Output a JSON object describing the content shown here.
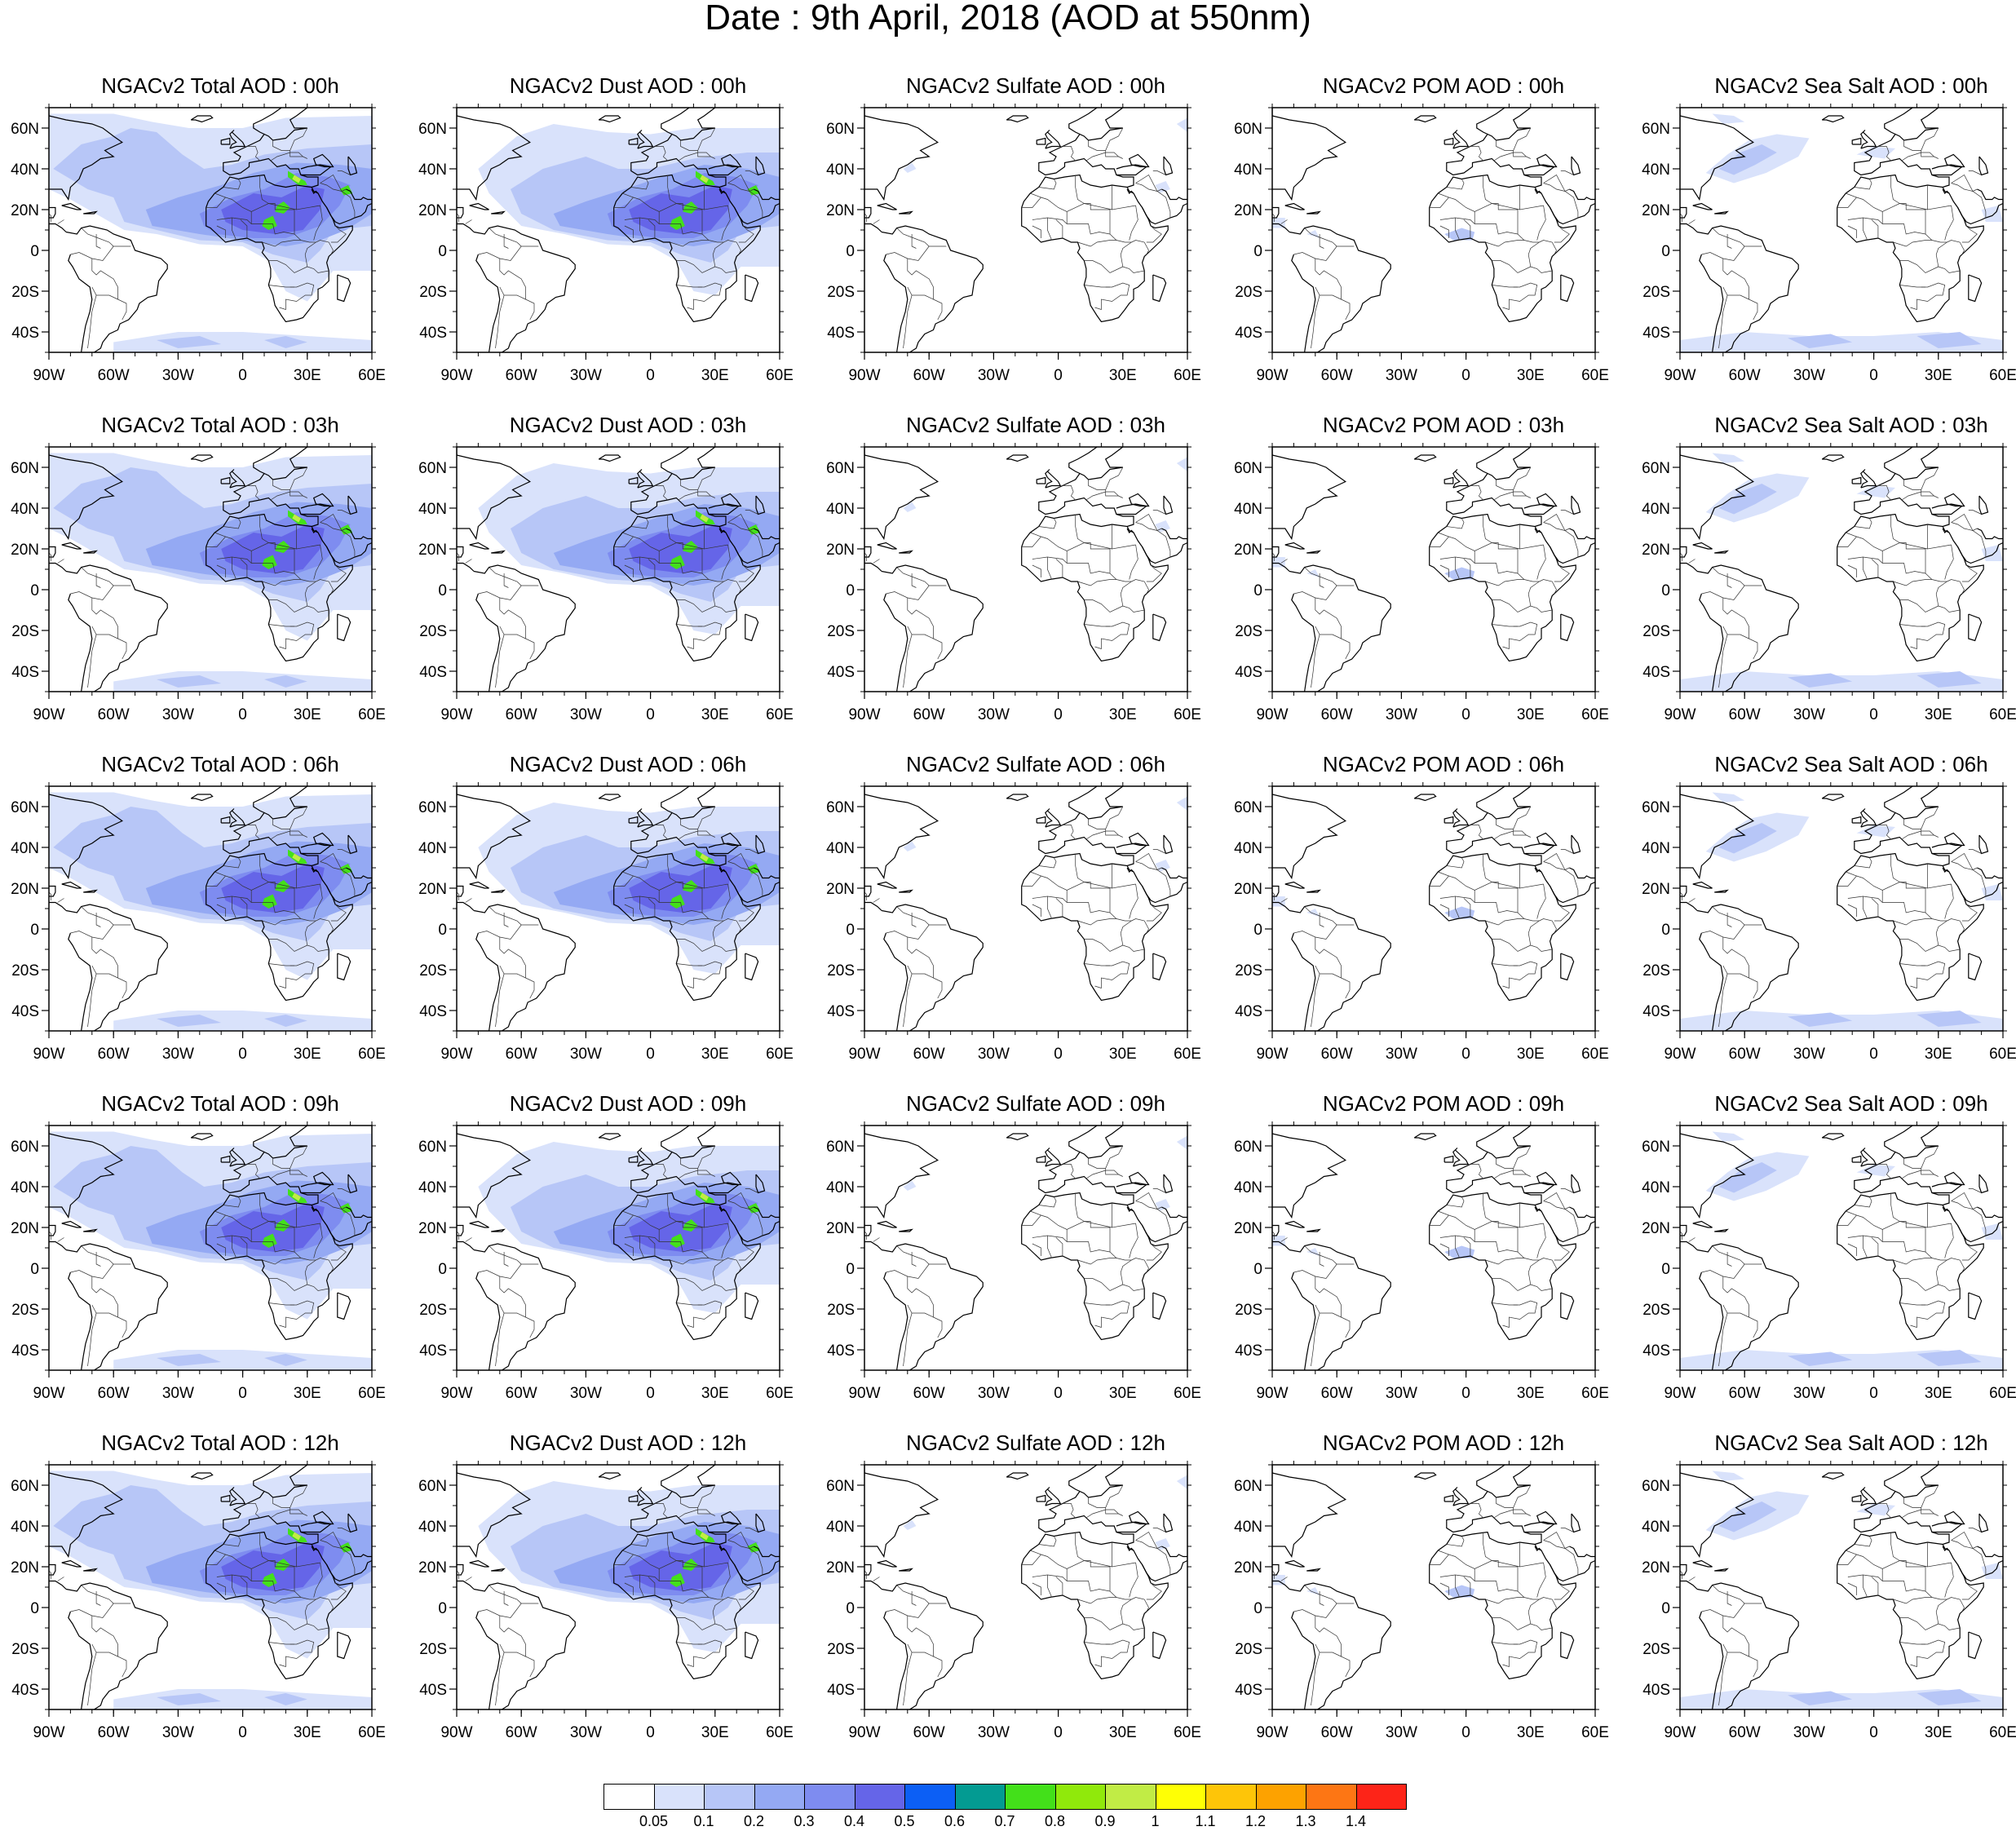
{
  "title": "Date : 9th April, 2018 (AOD at 550nm)",
  "columns": [
    {
      "key": "total",
      "name": "Total"
    },
    {
      "key": "dust",
      "name": "Dust"
    },
    {
      "key": "sulfate",
      "name": "Sulfate"
    },
    {
      "key": "pom",
      "name": "POM"
    },
    {
      "key": "seasalt",
      "name": "Sea Salt"
    }
  ],
  "rows": [
    {
      "hour": "00h",
      "titles": [
        "NGACv2 Total AOD : 00h",
        "NGACv2 Dust AOD : 00h",
        "NGACv2 Sulfate AOD : 00h",
        "NGACv2 POM AOD : 00h",
        "NGACv2 Sea Salt AOD : 00h"
      ]
    },
    {
      "hour": "03h",
      "titles": [
        "NGACv2 Total AOD : 03h",
        "NGACv2 Dust AOD : 03h",
        "NGACv2 Sulfate AOD : 03h",
        "NGACv2 POM AOD : 03h",
        "NGACv2 Sea Salt AOD : 03h"
      ]
    },
    {
      "hour": "06h",
      "titles": [
        "NGACv2 Total AOD : 06h",
        "NGACv2 Dust AOD : 06h",
        "NGACv2 Sulfate AOD : 06h",
        "NGACv2 POM AOD : 06h",
        "NGACv2 Sea Salt AOD : 06h"
      ]
    },
    {
      "hour": "09h",
      "titles": [
        "NGACv2 Total AOD : 09h",
        "NGACv2 Dust AOD : 09h",
        "NGACv2 Sulfate AOD : 09h",
        "NGACv2 POM AOD : 09h",
        "NGACv2 Sea Salt  AOD : 09h"
      ]
    },
    {
      "hour": "12h",
      "titles": [
        "NGACv2 Total AOD  : 12h",
        "NGACv2 Dust AOD : 12h",
        "NGACv2 Sulfate AOD : 12h",
        "NGACv2 POM  AOD : 12h",
        "NGACv2 Sea Salt  AOD : 12h"
      ]
    }
  ],
  "map_extent": {
    "lon": [
      -90,
      60
    ],
    "lat": [
      -50,
      70
    ]
  },
  "lon_ticks": [
    {
      "value": -90,
      "label": "90W"
    },
    {
      "value": -60,
      "label": "60W"
    },
    {
      "value": -30,
      "label": "30W"
    },
    {
      "value": 0,
      "label": "0"
    },
    {
      "value": 30,
      "label": "30E"
    },
    {
      "value": 60,
      "label": "60E"
    }
  ],
  "lat_ticks": [
    {
      "value": 60,
      "label": "60N"
    },
    {
      "value": 40,
      "label": "40N"
    },
    {
      "value": 20,
      "label": "20N"
    },
    {
      "value": 0,
      "label": "0"
    },
    {
      "value": -20,
      "label": "20S"
    },
    {
      "value": -40,
      "label": "40S"
    }
  ],
  "colorbar": {
    "colors": [
      "#ffffff",
      "#d9e2fb",
      "#b7c6f7",
      "#94a9f3",
      "#7e8cf0",
      "#6565e8",
      "#0c5ff5",
      "#039b92",
      "#43e01a",
      "#90e90b",
      "#c1ec45",
      "#ffff05",
      "#fec508",
      "#fda200",
      "#fd7614",
      "#fd2418"
    ],
    "labels": [
      "0.05",
      "0.1",
      "0.2",
      "0.3",
      "0.4",
      "0.5",
      "0.6",
      "0.7",
      "0.8",
      "0.9",
      "1",
      "1.1",
      "1.2",
      "1.3",
      "1.4"
    ]
  }
}
